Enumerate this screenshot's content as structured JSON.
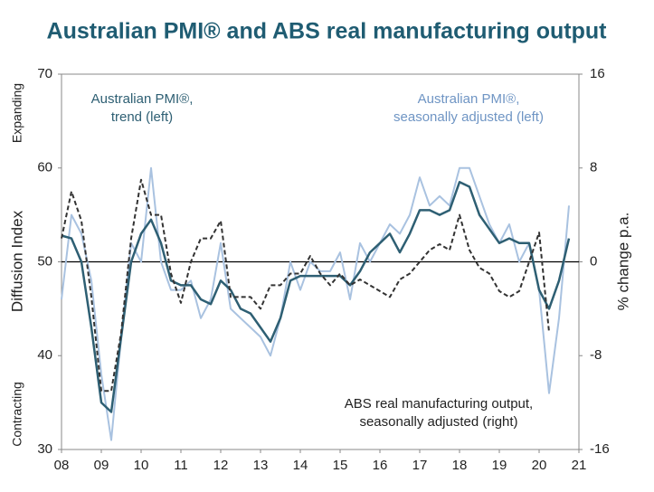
{
  "chart_data": {
    "type": "line",
    "title": "Australian PMI® and ABS real manufacturing output",
    "y_label": "Diffusion Index",
    "y2_label": "% change p.a.",
    "y_top_note": "Expanding",
    "y_bottom_note": "Contracting",
    "annotations": [
      {
        "lines": [
          "Australian PMI®,",
          "trend (left)"
        ],
        "series": 1
      },
      {
        "lines": [
          "Australian PMI®,",
          "seasonally adjusted (left)"
        ],
        "series": 0
      },
      {
        "lines": [
          "ABS real manufacturing output,",
          "seasonally adjusted (right)"
        ],
        "series": 2
      }
    ],
    "x": [
      8.0,
      8.25,
      8.5,
      8.75,
      9.0,
      9.25,
      9.5,
      9.75,
      10.0,
      10.25,
      10.5,
      10.75,
      11.0,
      11.25,
      11.5,
      11.75,
      12.0,
      12.25,
      12.5,
      12.75,
      13.0,
      13.25,
      13.5,
      13.75,
      14.0,
      14.25,
      14.5,
      14.75,
      15.0,
      15.25,
      15.5,
      15.75,
      16.0,
      16.25,
      16.5,
      16.75,
      17.0,
      17.25,
      17.5,
      17.75,
      18.0,
      18.25,
      18.5,
      18.75,
      19.0,
      19.25,
      19.5,
      19.75,
      20.0,
      20.25,
      20.5,
      20.75
    ],
    "series": [
      {
        "name": "Australian PMI®, seasonally adjusted",
        "color": "#a9c2e0",
        "dash": false,
        "width": 2,
        "values": [
          46,
          55,
          53,
          48,
          38,
          31,
          42,
          52,
          50,
          60,
          50,
          47,
          47,
          48,
          44,
          46,
          52,
          45,
          44,
          43,
          42,
          40,
          44,
          50,
          47,
          50,
          49,
          49,
          51,
          46,
          52,
          50,
          52,
          54,
          53,
          55,
          59,
          56,
          57,
          56,
          60,
          60,
          57,
          54,
          52,
          54,
          50,
          52,
          47,
          36,
          44,
          56
        ]
      },
      {
        "name": "Australian PMI®, trend",
        "color": "#2e5f73",
        "dash": false,
        "width": 2.5,
        "values": [
          52.8,
          52.5,
          50,
          43,
          35,
          34,
          42,
          50,
          53,
          54.5,
          52,
          48,
          47.5,
          47.5,
          46,
          45.5,
          48,
          47,
          45,
          44.5,
          43,
          41.5,
          44,
          48,
          48.5,
          48.5,
          48.5,
          48.5,
          48.5,
          47.5,
          49,
          51,
          52,
          53,
          51,
          53,
          55.5,
          55.5,
          55,
          55.5,
          58.5,
          58,
          55,
          53.5,
          52,
          52.5,
          52,
          52,
          47,
          45,
          48,
          52.5
        ]
      },
      {
        "name": "ABS real manufacturing output, seasonally adjusted",
        "color": "#333333",
        "dash": true,
        "width": 2,
        "axis": "y2",
        "values": [
          2,
          6,
          3.5,
          -3,
          -11,
          -11,
          -6,
          2,
          7,
          4,
          4,
          -1,
          -3.5,
          0,
          2,
          2,
          3.5,
          -3,
          -3,
          -3,
          -4,
          -2,
          -2,
          -1,
          -1,
          0.5,
          -1,
          -2,
          -1,
          -2,
          -1.5,
          -2,
          -2.5,
          -3,
          -1.5,
          -1,
          0,
          1,
          1.5,
          1,
          4,
          1,
          -0.5,
          -1,
          -2.5,
          -3,
          -2.5,
          0,
          2.5,
          -6,
          null,
          null
        ]
      }
    ],
    "xlim": [
      8,
      21
    ],
    "xticks": [
      {
        "value": 8,
        "label": "08"
      },
      {
        "value": 9,
        "label": "09"
      },
      10,
      11,
      12,
      13,
      14,
      15,
      16,
      17,
      18,
      19,
      20,
      21
    ],
    "ylim": [
      30,
      70
    ],
    "yticks": [
      30,
      40,
      50,
      60,
      70
    ],
    "y2lim": [
      -16,
      16
    ],
    "y2ticks": [
      -16,
      -8,
      0,
      8,
      16
    ],
    "hline": 50,
    "hline_color": "#000000"
  }
}
